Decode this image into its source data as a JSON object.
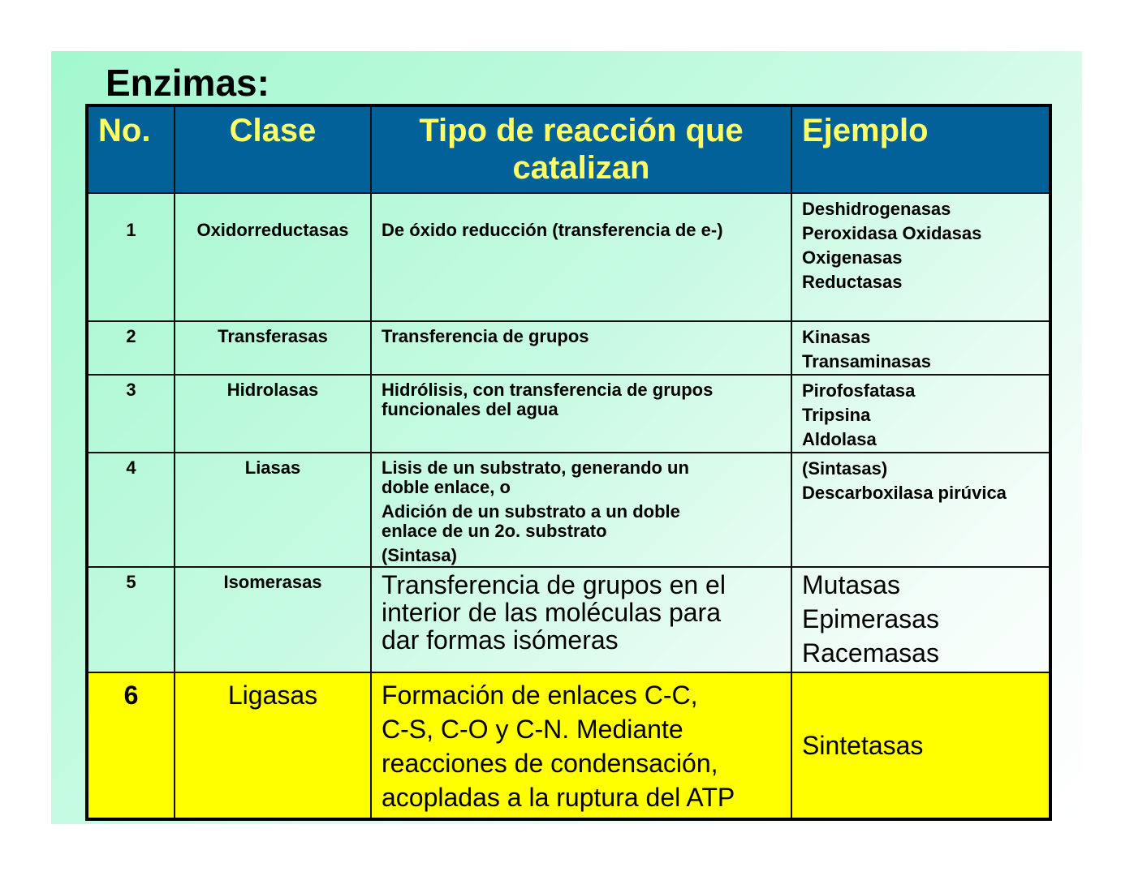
{
  "title": "Enzimas:",
  "colors": {
    "header_bg": "#03619a",
    "header_text": "#ffff66",
    "highlight_row": "#ffff00"
  },
  "table": {
    "headers": [
      [
        "No."
      ],
      [
        "Clase"
      ],
      [
        "Tipo de reacción que",
        "catalizan"
      ],
      [
        "Ejemplo"
      ]
    ],
    "rows": [
      [
        [
          "1"
        ],
        [
          "Oxidorreductasas"
        ],
        [
          "De óxido reducción (transferencia de e-)"
        ],
        [
          "Deshidrogenasas",
          "Peroxidasa Oxidasas",
          "Oxigenasas",
          "Reductasas"
        ]
      ],
      [
        [
          "2"
        ],
        [
          "Transferasas"
        ],
        [
          "Transferencia de grupos"
        ],
        [
          "Kinasas",
          "Transaminasas"
        ]
      ],
      [
        [
          "3"
        ],
        [
          "Hidrolasas"
        ],
        [
          "Hidrólisis, con transferencia de grupos",
          "funcionales del agua"
        ],
        [
          "Pirofosfatasa",
          "Tripsina",
          "Aldolasa"
        ]
      ],
      [
        [
          "4"
        ],
        [
          "Liasas"
        ],
        [
          "Lisis de un substrato, generando un",
          "doble enlace,  o",
          "Adición de un substrato a un doble",
          "enlace de un 2o. substrato",
          "(Sintasa)"
        ],
        [
          "(Sintasas)",
          "Descarboxilasa pirúvica"
        ]
      ],
      [
        [
          "5"
        ],
        [
          "Isomerasas"
        ],
        [
          "Transferencia de grupos en el",
          "interior de las moléculas para",
          "dar formas isómeras"
        ],
        [
          "Mutasas",
          "Epimerasas",
          "Racemasas"
        ]
      ],
      [
        [
          "6"
        ],
        [
          "Ligasas"
        ],
        [
          "Formación de enlaces C-C,",
          "C-S, C-O y C-N. Mediante",
          "reacciones de condensación,",
          "acopladas a la ruptura del ATP"
        ],
        [
          "Sintetasas"
        ]
      ]
    ]
  }
}
